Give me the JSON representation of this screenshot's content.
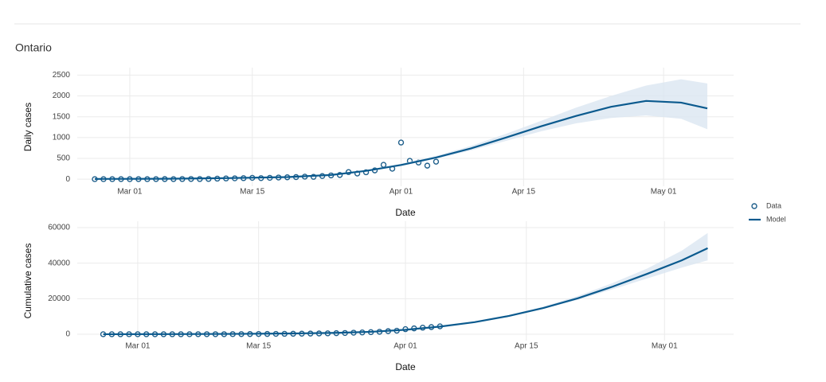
{
  "title": "Ontario",
  "chart_data": [
    {
      "type": "line",
      "y_label": "Daily cases",
      "x_label": "Date",
      "legend": "right",
      "grid": true,
      "xlim": [
        "02-24",
        "05-09"
      ],
      "ylim": [
        -170,
        2680
      ],
      "xticks": [
        {
          "value": "03-01",
          "label": "Mar 01"
        },
        {
          "value": "03-15",
          "label": "Mar 15"
        },
        {
          "value": "04-01",
          "label": "Apr 01"
        },
        {
          "value": "04-15",
          "label": "Apr 15"
        },
        {
          "value": "05-01",
          "label": "May 01"
        }
      ],
      "yticks": [
        0,
        500,
        1000,
        1500,
        2000,
        2500
      ],
      "series": [
        {
          "name": "Data",
          "type": "scatter",
          "color": "#1f5f8b",
          "x": [
            "02-26",
            "02-27",
            "02-28",
            "02-29",
            "03-01",
            "03-02",
            "03-03",
            "03-04",
            "03-05",
            "03-06",
            "03-07",
            "03-08",
            "03-09",
            "03-10",
            "03-11",
            "03-12",
            "03-13",
            "03-14",
            "03-15",
            "03-16",
            "03-17",
            "03-18",
            "03-19",
            "03-20",
            "03-21",
            "03-22",
            "03-23",
            "03-24",
            "03-25",
            "03-26",
            "03-27",
            "03-28",
            "03-29",
            "03-30",
            "03-31",
            "04-01",
            "04-02",
            "04-03",
            "04-04",
            "04-05"
          ],
          "values": [
            0,
            0,
            0,
            1,
            0,
            1,
            0,
            1,
            2,
            1,
            3,
            4,
            3,
            5,
            12,
            17,
            20,
            24,
            32,
            25,
            32,
            40,
            45,
            50,
            60,
            55,
            75,
            90,
            100,
            170,
            135,
            165,
            210,
            345,
            250,
            880,
            440,
            400,
            325,
            420
          ]
        },
        {
          "name": "Model",
          "type": "line",
          "color": "#0b5a8e",
          "band_color": "#dbe6f1",
          "x": [
            "02-26",
            "03-05",
            "03-12",
            "03-19",
            "03-24",
            "03-28",
            "04-01",
            "04-05",
            "04-09",
            "04-13",
            "04-17",
            "04-21",
            "04-25",
            "04-29",
            "05-03",
            "05-06"
          ],
          "values": [
            5,
            10,
            25,
            50,
            100,
            200,
            340,
            520,
            740,
            1000,
            1270,
            1520,
            1740,
            1880,
            1840,
            1700
          ],
          "lower": [
            4,
            8,
            22,
            45,
            92,
            185,
            320,
            490,
            690,
            920,
            1150,
            1340,
            1470,
            1530,
            1450,
            1200
          ],
          "upper": [
            6,
            12,
            28,
            55,
            108,
            215,
            370,
            560,
            800,
            1090,
            1400,
            1720,
            2000,
            2250,
            2400,
            2300
          ]
        }
      ]
    },
    {
      "type": "line",
      "y_label": "Cumulative cases",
      "x_label": "Date",
      "grid": true,
      "xlim": [
        "02-23",
        "05-09"
      ],
      "ylim": [
        -3600,
        63600
      ],
      "xticks": [
        {
          "value": "03-01",
          "label": "Mar 01"
        },
        {
          "value": "03-15",
          "label": "Mar 15"
        },
        {
          "value": "04-01",
          "label": "Apr 01"
        },
        {
          "value": "04-15",
          "label": "Apr 15"
        },
        {
          "value": "05-01",
          "label": "May 01"
        }
      ],
      "yticks": [
        0,
        20000,
        40000,
        60000
      ],
      "series": [
        {
          "name": "Data",
          "type": "scatter",
          "color": "#1f5f8b",
          "x": [
            "02-26",
            "02-27",
            "02-28",
            "02-29",
            "03-01",
            "03-02",
            "03-03",
            "03-04",
            "03-05",
            "03-06",
            "03-07",
            "03-08",
            "03-09",
            "03-10",
            "03-11",
            "03-12",
            "03-13",
            "03-14",
            "03-15",
            "03-16",
            "03-17",
            "03-18",
            "03-19",
            "03-20",
            "03-21",
            "03-22",
            "03-23",
            "03-24",
            "03-25",
            "03-26",
            "03-27",
            "03-28",
            "03-29",
            "03-30",
            "03-31",
            "04-01",
            "04-02",
            "04-03",
            "04-04",
            "04-05"
          ],
          "values": [
            0,
            0,
            0,
            1,
            1,
            2,
            2,
            3,
            5,
            6,
            9,
            13,
            16,
            21,
            33,
            50,
            70,
            94,
            126,
            151,
            183,
            223,
            268,
            318,
            378,
            433,
            508,
            598,
            698,
            868,
            1003,
            1168,
            1378,
            1723,
            1973,
            2853,
            3293,
            3693,
            4018,
            4438
          ]
        },
        {
          "name": "Model",
          "type": "line",
          "color": "#0b5a8e",
          "band_color": "#dbe6f1",
          "x": [
            "02-26",
            "03-05",
            "03-12",
            "03-19",
            "03-24",
            "03-28",
            "04-01",
            "04-05",
            "04-09",
            "04-13",
            "04-17",
            "04-21",
            "04-25",
            "04-29",
            "05-03",
            "05-06"
          ],
          "values": [
            5,
            60,
            180,
            420,
            780,
            1350,
            2500,
            4300,
            6800,
            10300,
            14800,
            20300,
            26800,
            34000,
            41600,
            48400
          ],
          "lower": [
            4,
            55,
            170,
            400,
            750,
            1300,
            2450,
            4200,
            6600,
            10000,
            14300,
            19400,
            25300,
            31400,
            37500,
            41600
          ],
          "upper": [
            6,
            65,
            190,
            440,
            810,
            1400,
            2550,
            4450,
            7100,
            10800,
            15600,
            21600,
            28800,
            37000,
            47000,
            57000
          ]
        }
      ]
    }
  ]
}
